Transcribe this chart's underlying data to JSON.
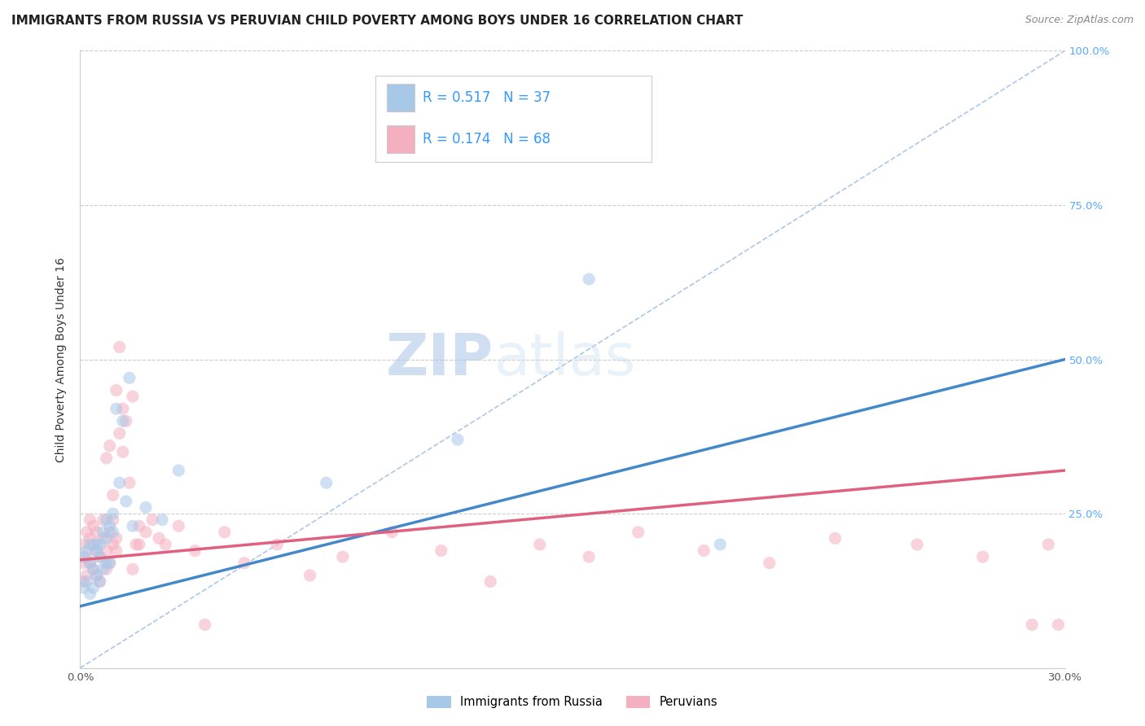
{
  "title": "IMMIGRANTS FROM RUSSIA VS PERUVIAN CHILD POVERTY AMONG BOYS UNDER 16 CORRELATION CHART",
  "source": "Source: ZipAtlas.com",
  "ylabel": "Child Poverty Among Boys Under 16",
  "xlim": [
    0.0,
    0.3
  ],
  "ylim": [
    0.0,
    1.0
  ],
  "legend1_R": "0.517",
  "legend1_N": "37",
  "legend2_R": "0.174",
  "legend2_N": "68",
  "blue_color": "#a8c8e8",
  "pink_color": "#f4afc0",
  "blue_line_color": "#4488cc",
  "pink_line_color": "#e06080",
  "dashed_line_color": "#aac8e8",
  "watermark_zip": "ZIP",
  "watermark_atlas": "atlas",
  "background_color": "#ffffff",
  "grid_color": "#cccccc",
  "blue_points_x": [
    0.001,
    0.001,
    0.002,
    0.002,
    0.003,
    0.003,
    0.003,
    0.004,
    0.004,
    0.005,
    0.005,
    0.005,
    0.006,
    0.006,
    0.006,
    0.007,
    0.007,
    0.008,
    0.008,
    0.008,
    0.009,
    0.009,
    0.01,
    0.01,
    0.011,
    0.012,
    0.013,
    0.014,
    0.015,
    0.016,
    0.02,
    0.025,
    0.03,
    0.075,
    0.115,
    0.155,
    0.195
  ],
  "blue_points_y": [
    0.18,
    0.13,
    0.19,
    0.14,
    0.17,
    0.12,
    0.2,
    0.16,
    0.13,
    0.2,
    0.15,
    0.19,
    0.18,
    0.14,
    0.2,
    0.22,
    0.16,
    0.21,
    0.17,
    0.24,
    0.23,
    0.17,
    0.25,
    0.22,
    0.42,
    0.3,
    0.4,
    0.27,
    0.47,
    0.23,
    0.26,
    0.24,
    0.32,
    0.3,
    0.37,
    0.63,
    0.2
  ],
  "pink_points_x": [
    0.001,
    0.001,
    0.001,
    0.002,
    0.002,
    0.002,
    0.003,
    0.003,
    0.003,
    0.004,
    0.004,
    0.004,
    0.005,
    0.005,
    0.005,
    0.006,
    0.006,
    0.007,
    0.007,
    0.008,
    0.008,
    0.009,
    0.009,
    0.01,
    0.01,
    0.011,
    0.011,
    0.012,
    0.013,
    0.014,
    0.015,
    0.016,
    0.017,
    0.018,
    0.02,
    0.022,
    0.024,
    0.026,
    0.03,
    0.035,
    0.038,
    0.044,
    0.05,
    0.06,
    0.07,
    0.08,
    0.095,
    0.11,
    0.125,
    0.14,
    0.155,
    0.17,
    0.19,
    0.21,
    0.23,
    0.255,
    0.275,
    0.29,
    0.295,
    0.298,
    0.012,
    0.013,
    0.009,
    0.008,
    0.01,
    0.011,
    0.016,
    0.018
  ],
  "pink_points_y": [
    0.2,
    0.17,
    0.14,
    0.22,
    0.18,
    0.15,
    0.21,
    0.17,
    0.24,
    0.2,
    0.16,
    0.23,
    0.19,
    0.15,
    0.22,
    0.18,
    0.14,
    0.21,
    0.24,
    0.19,
    0.16,
    0.22,
    0.17,
    0.2,
    0.24,
    0.45,
    0.19,
    0.38,
    0.35,
    0.4,
    0.3,
    0.44,
    0.2,
    0.23,
    0.22,
    0.24,
    0.21,
    0.2,
    0.23,
    0.19,
    0.07,
    0.22,
    0.17,
    0.2,
    0.15,
    0.18,
    0.22,
    0.19,
    0.14,
    0.2,
    0.18,
    0.22,
    0.19,
    0.17,
    0.21,
    0.2,
    0.18,
    0.07,
    0.2,
    0.07,
    0.52,
    0.42,
    0.36,
    0.34,
    0.28,
    0.21,
    0.16,
    0.2
  ],
  "blue_trend_x": [
    0.0,
    0.3
  ],
  "blue_trend_y": [
    0.1,
    0.5
  ],
  "pink_trend_x": [
    0.0,
    0.3
  ],
  "pink_trend_y": [
    0.175,
    0.32
  ],
  "dashed_trend_x": [
    0.0,
    0.3
  ],
  "dashed_trend_y": [
    0.0,
    1.0
  ],
  "title_fontsize": 11,
  "axis_label_fontsize": 10,
  "tick_fontsize": 9.5,
  "legend_fontsize": 12,
  "watermark_fontsize_zip": 52,
  "watermark_fontsize_atlas": 52,
  "source_fontsize": 9,
  "dot_size": 120,
  "dot_alpha": 0.55,
  "line_width": 2.5
}
